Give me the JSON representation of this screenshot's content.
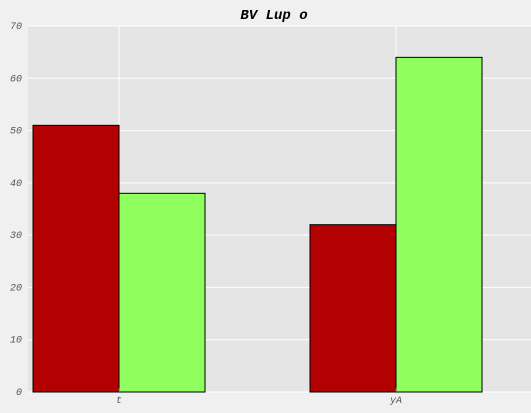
{
  "chart_data": {
    "type": "bar",
    "title": "BV Lup o",
    "xlabel": "",
    "ylabel": "",
    "categories": [
      "t",
      "yA"
    ],
    "series": [
      {
        "values": [
          51,
          32
        ],
        "color": "#b30000"
      },
      {
        "values": [
          38,
          64
        ],
        "color": "#8fff5f"
      }
    ],
    "ylim": [
      0,
      70
    ],
    "yticks": [
      "0",
      "10",
      "20",
      "30",
      "40",
      "50",
      "60",
      "70"
    ],
    "grid": true,
    "legend": "none",
    "plot_background": "#e5e5e5",
    "grid_color": "#ffffff"
  }
}
